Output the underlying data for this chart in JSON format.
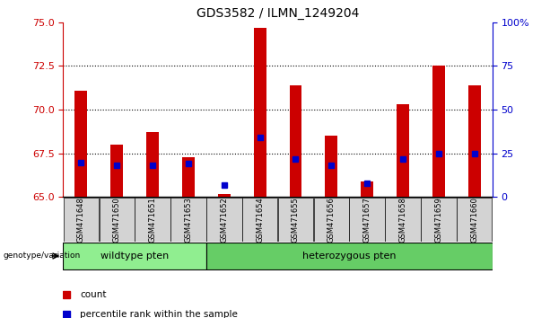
{
  "title": "GDS3582 / ILMN_1249204",
  "categories": [
    "GSM471648",
    "GSM471650",
    "GSM471651",
    "GSM471653",
    "GSM471652",
    "GSM471654",
    "GSM471655",
    "GSM471656",
    "GSM471657",
    "GSM471658",
    "GSM471659",
    "GSM471660"
  ],
  "count_values": [
    71.1,
    68.0,
    68.7,
    67.3,
    65.2,
    74.7,
    71.4,
    68.5,
    65.9,
    70.3,
    72.5,
    71.4
  ],
  "percentile_values": [
    20,
    18,
    18,
    19,
    7,
    34,
    22,
    18,
    8,
    22,
    25,
    25
  ],
  "y_min": 65,
  "y_max": 75,
  "y_ticks": [
    65,
    67.5,
    70,
    72.5,
    75
  ],
  "y2_ticks": [
    0,
    25,
    50,
    75,
    100
  ],
  "y2_labels": [
    "0",
    "25",
    "50",
    "75",
    "100%"
  ],
  "wildtype_count": 4,
  "wildtype_label": "wildtype pten",
  "heterozygous_label": "heterozygous pten",
  "genotype_label": "genotype/variation",
  "legend_count": "count",
  "legend_percentile": "percentile rank within the sample",
  "bar_color": "#cc0000",
  "percentile_color": "#0000cc",
  "bg_wildtype": "#90EE90",
  "bg_heterozygous": "#66CD66",
  "bar_width": 0.35,
  "title_fontsize": 10,
  "tick_fontsize": 8,
  "label_fontsize": 6
}
